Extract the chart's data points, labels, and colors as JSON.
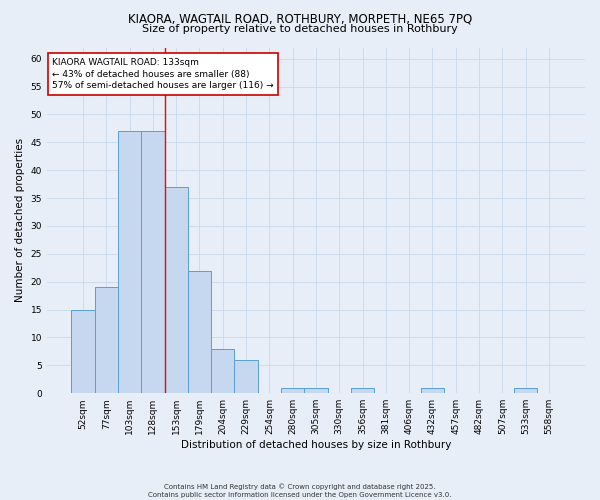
{
  "title1": "KIAORA, WAGTAIL ROAD, ROTHBURY, MORPETH, NE65 7PQ",
  "title2": "Size of property relative to detached houses in Rothbury",
  "xlabel": "Distribution of detached houses by size in Rothbury",
  "ylabel": "Number of detached properties",
  "categories": [
    "52sqm",
    "77sqm",
    "103sqm",
    "128sqm",
    "153sqm",
    "179sqm",
    "204sqm",
    "229sqm",
    "254sqm",
    "280sqm",
    "305sqm",
    "330sqm",
    "356sqm",
    "381sqm",
    "406sqm",
    "432sqm",
    "457sqm",
    "482sqm",
    "507sqm",
    "533sqm",
    "558sqm"
  ],
  "values": [
    15,
    19,
    47,
    47,
    37,
    22,
    8,
    6,
    0,
    1,
    1,
    0,
    1,
    0,
    0,
    1,
    0,
    0,
    0,
    1,
    0
  ],
  "bar_color": "#c5d8f0",
  "bar_edge_color": "#5a9fd4",
  "grid_color": "#c8d8ea",
  "bg_color": "#e8eef8",
  "red_line_x": 3.5,
  "annotation_title": "KIAORA WAGTAIL ROAD: 133sqm",
  "annotation_line1": "← 43% of detached houses are smaller (88)",
  "annotation_line2": "57% of semi-detached houses are larger (116) →",
  "annotation_box_color": "#ffffff",
  "annotation_border_color": "#cc0000",
  "footer1": "Contains HM Land Registry data © Crown copyright and database right 2025.",
  "footer2": "Contains public sector information licensed under the Open Government Licence v3.0.",
  "yticks": [
    0,
    5,
    10,
    15,
    20,
    25,
    30,
    35,
    40,
    45,
    50,
    55,
    60
  ],
  "ylim": [
    0,
    62
  ],
  "title1_fontsize": 8.5,
  "title2_fontsize": 8,
  "ylabel_fontsize": 7.5,
  "xlabel_fontsize": 7.5,
  "tick_fontsize": 6.5,
  "ann_fontsize": 6.5,
  "footer_fontsize": 5
}
